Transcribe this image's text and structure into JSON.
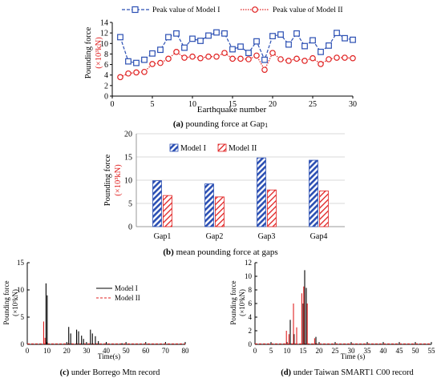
{
  "colors": {
    "model1": "#2b4fb3",
    "model2": "#e02020",
    "axis": "#000000",
    "grid": "#d9d9d9",
    "black": "#000000"
  },
  "chart_data": [
    {
      "id": "a",
      "type": "line",
      "caption_letter": "(a)",
      "caption_text": "pounding force at Gap",
      "caption_sub": "1",
      "xlabel": "Earthquake number",
      "ylabel_line1": "Pounding force",
      "ylabel_line2": "(×10³kN)",
      "xlim": [
        0,
        30
      ],
      "ylim": [
        0,
        14
      ],
      "xticks": [
        0,
        5,
        10,
        15,
        20,
        25,
        30
      ],
      "yticks": [
        0,
        2,
        4,
        6,
        8,
        10,
        12,
        14
      ],
      "legend_position": "top",
      "x": [
        1,
        2,
        3,
        4,
        5,
        6,
        7,
        8,
        9,
        10,
        11,
        12,
        13,
        14,
        15,
        16,
        17,
        18,
        19,
        20,
        21,
        22,
        23,
        24,
        25,
        26,
        27,
        28,
        29,
        30
      ],
      "series": [
        {
          "name": "Peak value of Model I",
          "values": [
            11.2,
            6.6,
            6.3,
            6.9,
            8.1,
            8.8,
            11.2,
            11.9,
            9.2,
            10.9,
            10.5,
            11.5,
            12.1,
            11.9,
            8.9,
            9.4,
            8.2,
            10.4,
            6.9,
            11.4,
            11.7,
            9.8,
            11.9,
            9.5,
            10.6,
            8.4,
            9.6,
            12.0,
            11.0,
            10.7
          ]
        },
        {
          "name": "Peak value of Model II",
          "values": [
            3.6,
            4.3,
            4.5,
            4.6,
            6.1,
            6.3,
            7.1,
            8.4,
            7.3,
            7.5,
            7.2,
            7.5,
            7.5,
            8.2,
            7.1,
            7.1,
            7.0,
            7.7,
            5.0,
            8.2,
            7.0,
            6.7,
            7.1,
            6.7,
            7.2,
            6.1,
            7.0,
            7.3,
            7.3,
            7.2
          ]
        }
      ]
    },
    {
      "id": "b",
      "type": "bar",
      "caption_letter": "(b)",
      "caption_text": "mean pounding force at gaps",
      "ylabel_line1": "Pounding force",
      "ylabel_line2": "(×10³kN)",
      "ylim": [
        0,
        20
      ],
      "yticks": [
        0,
        5,
        10,
        15,
        20
      ],
      "grid": true,
      "legend_position": "top",
      "categories": [
        "Gap1",
        "Gap2",
        "Gap3",
        "Gap4"
      ],
      "series": [
        {
          "name": "Model I",
          "values": [
            9.9,
            9.2,
            14.8,
            14.3
          ]
        },
        {
          "name": "Model II",
          "values": [
            6.7,
            6.4,
            7.9,
            7.7
          ]
        }
      ]
    },
    {
      "id": "c",
      "type": "line",
      "caption_letter": "(c)",
      "caption_text": "under Borrego Mtn record",
      "xlabel": "Time(s)",
      "ylabel_line1": "Pounding force",
      "ylabel_line2": "(×10³kN)",
      "xlim": [
        0,
        80
      ],
      "ylim": [
        0,
        15
      ],
      "xticks": [
        0,
        10,
        20,
        30,
        40,
        50,
        60,
        70,
        80
      ],
      "yticks": [
        0,
        5,
        10,
        15
      ],
      "legend_position": "middle-right",
      "series": [
        {
          "name": "Model I",
          "spikes": [
            [
              9.5,
              11.2
            ],
            [
              10.1,
              9.0
            ],
            [
              21.0,
              3.2
            ],
            [
              22.0,
              2.0
            ],
            [
              25.0,
              2.7
            ],
            [
              26.0,
              2.4
            ],
            [
              27.5,
              1.6
            ],
            [
              28.5,
              1.0
            ],
            [
              32.0,
              2.7
            ],
            [
              33.0,
              2.0
            ],
            [
              34.5,
              1.5
            ],
            [
              36.0,
              0.6
            ],
            [
              40.0,
              0.3
            ],
            [
              48.0,
              0.2
            ]
          ]
        },
        {
          "name": "Model II",
          "spikes": [
            [
              8.3,
              4.2
            ],
            [
              9.0,
              1.2
            ]
          ]
        }
      ]
    },
    {
      "id": "d",
      "type": "line",
      "caption_letter": "(d)",
      "caption_text": "under Taiwan SMART1 C00 record",
      "xlabel": "Time (s)",
      "ylabel_line1": "Pounding force",
      "ylabel_line2": "(×10³kN)",
      "xlim": [
        0,
        55
      ],
      "ylim": [
        0,
        12
      ],
      "xticks": [
        0,
        5,
        10,
        15,
        20,
        25,
        30,
        35,
        40,
        45,
        50,
        55
      ],
      "yticks": [
        0,
        2,
        4,
        6,
        8,
        10,
        12
      ],
      "series": [
        {
          "name": "Model I",
          "spikes": [
            [
              11.0,
              3.6
            ],
            [
              12.2,
              1.5
            ],
            [
              15.0,
              6.0
            ],
            [
              15.5,
              10.9
            ],
            [
              16.0,
              8.3
            ],
            [
              19.0,
              1.1
            ]
          ]
        },
        {
          "name": "Model II",
          "spikes": [
            [
              9.8,
              2.0
            ],
            [
              10.6,
              1.5
            ],
            [
              12.0,
              6.0
            ],
            [
              13.0,
              2.5
            ],
            [
              14.6,
              7.5
            ],
            [
              15.2,
              8.5
            ],
            [
              16.3,
              6.0
            ],
            [
              18.6,
              0.9
            ]
          ]
        }
      ]
    }
  ]
}
